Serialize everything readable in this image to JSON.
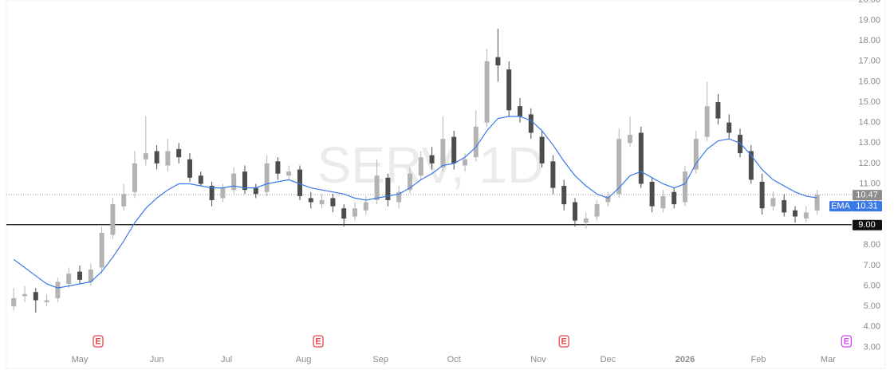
{
  "chart_data": {
    "type": "candlestick",
    "watermark": "SERV, 1D",
    "x": [
      2,
      5,
      8,
      11,
      14,
      17,
      20,
      23,
      26,
      29,
      32,
      35,
      38,
      41,
      44,
      47,
      50,
      53,
      56,
      59,
      62,
      65,
      68,
      71,
      74,
      77,
      80,
      83,
      86,
      89,
      92,
      95,
      98,
      101,
      104,
      107,
      110,
      113,
      116,
      119,
      122,
      125,
      128,
      131,
      134,
      137,
      140,
      143,
      146,
      149,
      152,
      155,
      158,
      161,
      164,
      167,
      170,
      173,
      176,
      179,
      182,
      185,
      188,
      191,
      194,
      197,
      200,
      203,
      206,
      209,
      212,
      215,
      218,
      221
    ],
    "open": [
      5.0,
      5.5,
      5.7,
      5.2,
      5.4,
      6.1,
      6.7,
      6.2,
      6.9,
      8.5,
      9.9,
      10.6,
      12.2,
      12.6,
      11.9,
      12.7,
      12.2,
      11.4,
      10.9,
      10.3,
      10.7,
      11.6,
      10.8,
      10.6,
      12.1,
      11.4,
      11.7,
      10.3,
      10.0,
      10.3,
      9.8,
      9.4,
      9.7,
      10.2,
      11.3,
      10.1,
      10.7,
      11.4,
      12.4,
      11.8,
      13.3,
      11.9,
      12.3,
      14.0,
      17.2,
      16.6,
      14.8,
      14.4,
      13.3,
      12.1,
      10.9,
      10.1,
      9.1,
      9.4,
      10.1,
      10.5,
      13.0,
      13.5,
      11.1,
      9.8,
      10.6,
      10.1,
      11.7,
      13.3,
      15.0,
      14.0,
      13.4,
      12.6,
      11.1,
      9.9,
      10.2,
      9.7,
      9.3,
      9.7
    ],
    "high": [
      5.9,
      6.0,
      5.9,
      5.6,
      6.4,
      6.9,
      7.0,
      7.1,
      8.9,
      10.3,
      11.0,
      12.6,
      14.3,
      12.9,
      13.2,
      13.0,
      12.5,
      11.6,
      11.1,
      11.0,
      11.8,
      11.9,
      11.0,
      12.4,
      12.3,
      11.9,
      11.9,
      10.6,
      10.5,
      10.5,
      10.0,
      10.1,
      10.4,
      12.2,
      11.5,
      10.9,
      11.8,
      12.6,
      12.8,
      14.3,
      13.6,
      12.5,
      14.6,
      17.6,
      18.6,
      17.0,
      15.2,
      14.7,
      13.6,
      12.4,
      11.2,
      10.3,
      9.6,
      10.2,
      10.6,
      13.7,
      14.3,
      13.8,
      11.3,
      10.7,
      10.8,
      11.9,
      13.6,
      16.0,
      15.4,
      14.4,
      13.7,
      12.9,
      11.5,
      10.6,
      10.5,
      9.9,
      9.9,
      10.7
    ],
    "low": [
      4.8,
      5.2,
      4.7,
      5.0,
      5.2,
      5.9,
      6.1,
      6.0,
      6.6,
      8.3,
      9.7,
      10.3,
      11.9,
      11.7,
      11.6,
      12.0,
      11.1,
      10.9,
      9.9,
      10.1,
      10.5,
      10.5,
      10.3,
      10.4,
      11.2,
      11.2,
      10.2,
      9.8,
      9.8,
      9.6,
      8.9,
      9.2,
      9.5,
      10.0,
      9.9,
      9.8,
      10.5,
      11.2,
      11.7,
      11.6,
      11.7,
      11.6,
      12.1,
      13.8,
      16.0,
      14.3,
      14.0,
      13.2,
      11.8,
      10.5,
      9.7,
      8.9,
      8.8,
      9.2,
      9.9,
      10.3,
      12.8,
      10.8,
      9.6,
      9.6,
      9.8,
      9.9,
      11.5,
      13.1,
      13.9,
      13.2,
      12.3,
      11.0,
      9.5,
      9.7,
      9.4,
      9.1,
      9.1,
      9.5
    ],
    "close": [
      5.4,
      5.6,
      5.3,
      5.3,
      6.2,
      6.6,
      6.3,
      6.8,
      8.6,
      10.0,
      10.5,
      12.0,
      12.5,
      12.0,
      12.6,
      12.3,
      11.3,
      11.0,
      10.2,
      10.8,
      11.5,
      10.7,
      10.5,
      12.0,
      11.5,
      11.6,
      10.4,
      10.1,
      10.2,
      9.9,
      9.3,
      9.8,
      10.1,
      11.4,
      10.2,
      10.6,
      11.5,
      12.3,
      12.0,
      13.2,
      12.0,
      12.2,
      13.8,
      17.0,
      16.8,
      14.6,
      14.3,
      13.5,
      12.0,
      10.8,
      10.0,
      9.2,
      9.3,
      10.0,
      10.4,
      13.2,
      13.4,
      11.0,
      9.9,
      10.4,
      10.0,
      11.6,
      13.2,
      14.8,
      14.2,
      13.5,
      12.5,
      11.2,
      9.8,
      10.3,
      9.6,
      9.4,
      9.6,
      10.47
    ],
    "up_color": "#b3b3b3",
    "down_color": "#4d4d4d",
    "ema": {
      "name": "EMA",
      "color": "#3b78e7",
      "values": [
        7.3,
        6.9,
        6.5,
        6.1,
        5.9,
        6.0,
        6.1,
        6.2,
        6.7,
        7.4,
        8.2,
        9.1,
        9.8,
        10.3,
        10.7,
        11.0,
        11.0,
        10.9,
        10.8,
        10.8,
        10.9,
        10.8,
        10.8,
        11.0,
        11.1,
        11.2,
        11.0,
        10.8,
        10.7,
        10.6,
        10.5,
        10.3,
        10.2,
        10.3,
        10.4,
        10.5,
        10.8,
        11.2,
        11.5,
        11.9,
        12.0,
        12.3,
        12.8,
        13.6,
        14.2,
        14.3,
        14.3,
        14.1,
        13.6,
        12.9,
        12.1,
        11.4,
        10.9,
        10.5,
        10.3,
        10.8,
        11.4,
        11.6,
        11.3,
        11.0,
        10.8,
        11.0,
        12.0,
        12.7,
        13.1,
        13.2,
        13.0,
        12.4,
        11.7,
        11.2,
        10.9,
        10.6,
        10.4,
        10.31
      ]
    },
    "hline": {
      "value": 9,
      "label": "9.00",
      "color": "#111111"
    },
    "events": [
      {
        "x": 25,
        "label": "E",
        "color": "#e5484d"
      },
      {
        "x": 85,
        "label": "E",
        "color": "#e5484d"
      },
      {
        "x": 152,
        "label": "E",
        "color": "#e5484d"
      },
      {
        "x": 229,
        "label": "E",
        "color": "#c850e6"
      }
    ],
    "xlim": [
      0,
      225
    ],
    "xticks": [
      {
        "value": 20,
        "label": "May"
      },
      {
        "value": 41,
        "label": "Jun"
      },
      {
        "value": 60,
        "label": "Jul"
      },
      {
        "value": 81,
        "label": "Aug"
      },
      {
        "value": 102,
        "label": "Sep"
      },
      {
        "value": 122,
        "label": "Oct"
      },
      {
        "value": 145,
        "label": "Nov"
      },
      {
        "value": 164,
        "label": "Dec"
      },
      {
        "value": 185,
        "label": "2026",
        "bold": true
      },
      {
        "value": 205,
        "label": "Feb"
      },
      {
        "value": 224,
        "label": "Mar"
      }
    ],
    "ylim": [
      2,
      20
    ],
    "yticks": [
      {
        "value": 3,
        "label": "3.00"
      },
      {
        "value": 4,
        "label": "4.00"
      },
      {
        "value": 5,
        "label": "5.00"
      },
      {
        "value": 6,
        "label": "6.00"
      },
      {
        "value": 7,
        "label": "7.00"
      },
      {
        "value": 8,
        "label": "8.00"
      },
      {
        "value": 10,
        "label": "10.00"
      },
      {
        "value": 11,
        "label": "11.00"
      },
      {
        "value": 12,
        "label": "12.00"
      },
      {
        "value": 13,
        "label": "13.00"
      },
      {
        "value": 14,
        "label": "14.00"
      },
      {
        "value": 15,
        "label": "15.00"
      },
      {
        "value": 16,
        "label": "16.00"
      },
      {
        "value": 17,
        "label": "17.00"
      },
      {
        "value": 18,
        "label": "18.00"
      },
      {
        "value": 19,
        "label": "19.00"
      },
      {
        "value": 20,
        "label": "20.00"
      }
    ],
    "grid": false
  }
}
